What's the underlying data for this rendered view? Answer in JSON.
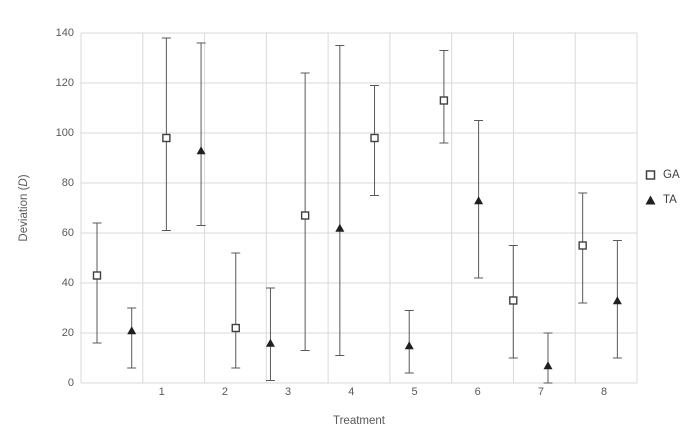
{
  "figure": {
    "background": "#ffffff",
    "gridline_color": "#d9d9d9",
    "axis_text_color": "#595959",
    "error_bar_color": "#595959",
    "ga_marker_stroke": "#404040",
    "ta_marker_fill": "#1f1f1f"
  },
  "chart_data": {
    "type": "scatter",
    "subtype": "error-bar-chart",
    "title": "",
    "xlabel": "Treatment",
    "ylabel": "Deviation (D)",
    "ylabel_parts": {
      "prefix": "Deviation (",
      "italic": "D",
      "suffix": ")"
    },
    "ylim": [
      0,
      140
    ],
    "yticks": [
      0,
      20,
      40,
      60,
      80,
      100,
      120,
      140
    ],
    "categories": [
      "1",
      "2",
      "3",
      "4",
      "5",
      "6",
      "7",
      "8"
    ],
    "grid": true,
    "legend_position": "right",
    "series": [
      {
        "name": "GA",
        "marker": "open-square",
        "values": [
          43,
          98,
          22,
          67,
          98,
          113,
          33,
          55
        ],
        "err_low": [
          16,
          61,
          6,
          13,
          75,
          96,
          10,
          32
        ],
        "err_high": [
          64,
          138,
          52,
          124,
          119,
          133,
          55,
          76
        ]
      },
      {
        "name": "TA",
        "marker": "filled-triangle",
        "values": [
          21,
          93,
          16,
          62,
          15,
          73,
          7,
          33
        ],
        "err_low": [
          6,
          63,
          1,
          11,
          4,
          42,
          0,
          10
        ],
        "err_high": [
          30,
          136,
          38,
          135,
          29,
          105,
          20,
          57
        ]
      }
    ]
  }
}
